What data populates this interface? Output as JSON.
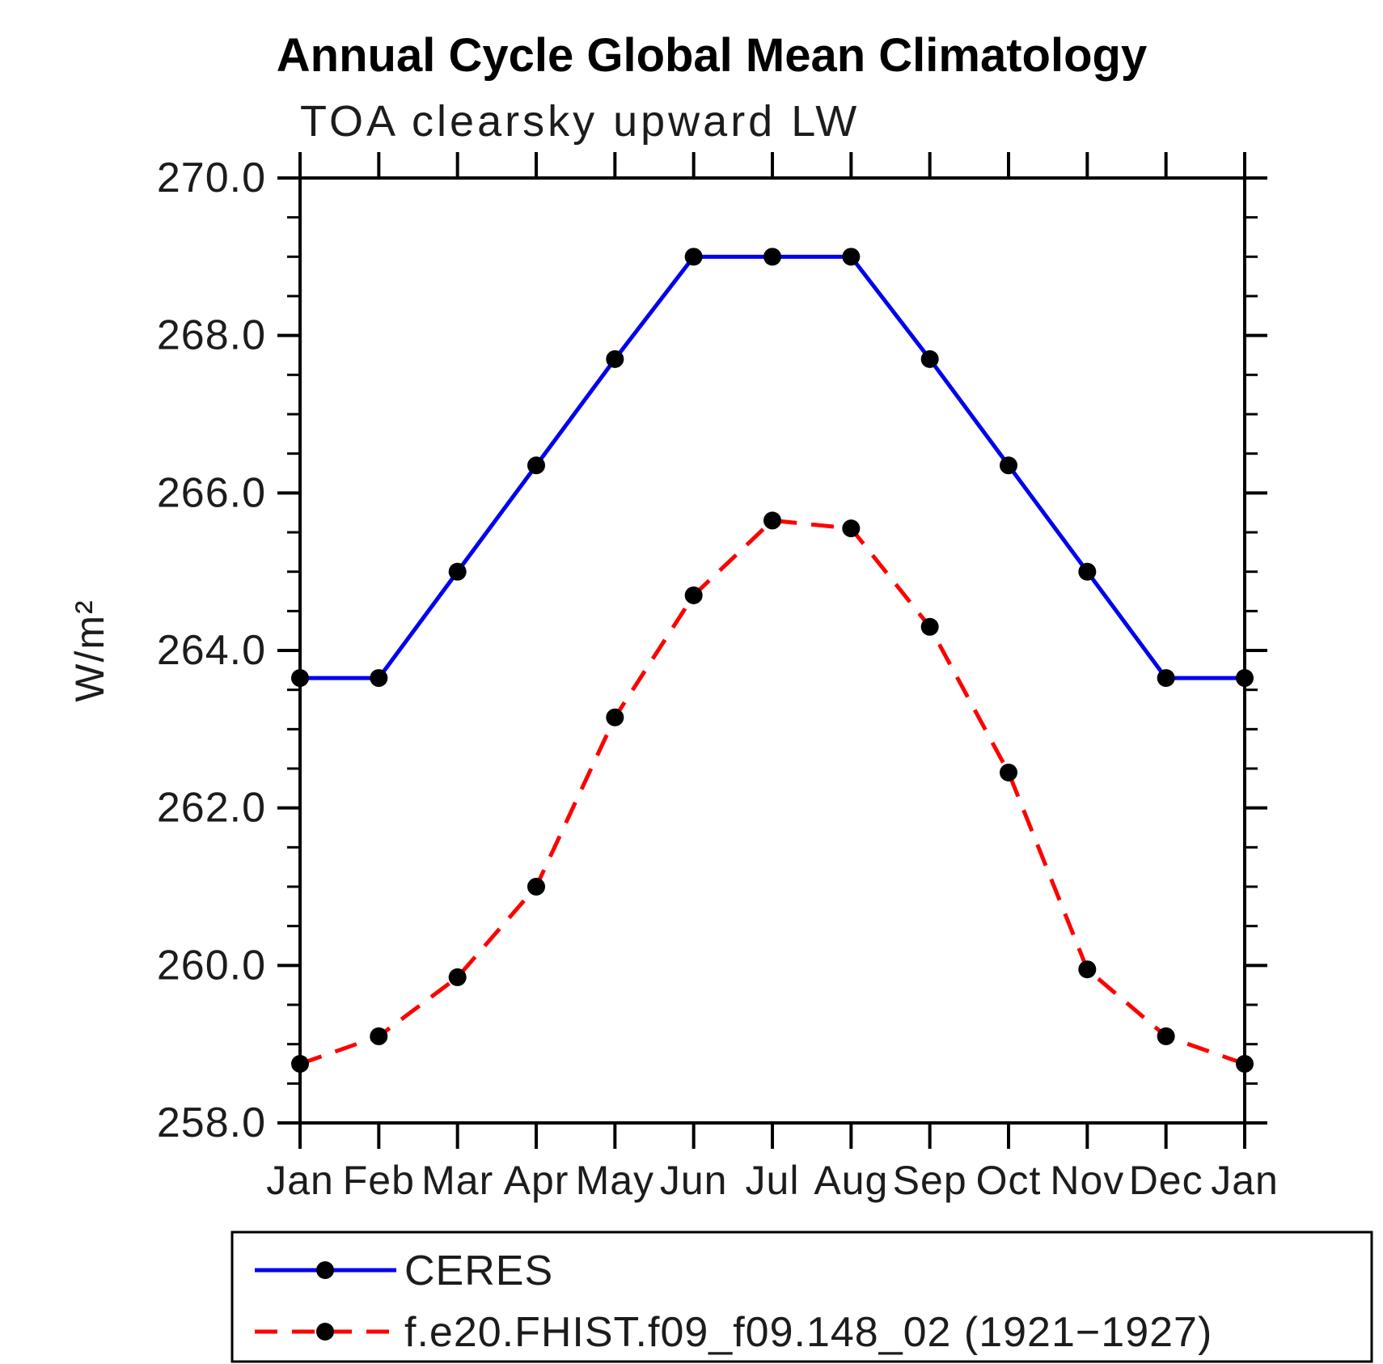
{
  "page": {
    "background_color": "#ffffff",
    "axis_color": "#000000",
    "marker_color": "#000000"
  },
  "chart_data": {
    "type": "line",
    "title": "Annual Cycle Global Mean Climatology",
    "subtitle": "TOA clearsky upward LW",
    "ylabel": "W/m²",
    "xlabel": "",
    "categories": [
      "Jan",
      "Feb",
      "Mar",
      "Apr",
      "May",
      "Jun",
      "Jul",
      "Aug",
      "Sep",
      "Oct",
      "Nov",
      "Dec",
      "Jan"
    ],
    "ylim": [
      258.0,
      270.0
    ],
    "ytick_major_interval": 2.0,
    "ytick_minor_interval": 0.5,
    "ytick_labels": [
      "258.0",
      "260.0",
      "262.0",
      "264.0",
      "266.0",
      "268.0",
      "270.0"
    ],
    "grid": false,
    "legend_position": "bottom",
    "series": [
      {
        "name": "CERES",
        "color": "#0000ee",
        "line_style": "solid",
        "marker": "circle",
        "marker_color": "#000000",
        "values": [
          263.65,
          263.65,
          265.0,
          266.35,
          267.7,
          269.0,
          269.0,
          269.0,
          267.7,
          266.35,
          265.0,
          263.65,
          263.65
        ]
      },
      {
        "name": "f.e20.FHIST.f09_f09.148_02 (1921−1927)",
        "color": "#ff0000",
        "line_style": "dashed",
        "marker": "circle",
        "marker_color": "#000000",
        "values": [
          258.75,
          259.1,
          259.85,
          261.0,
          263.15,
          264.7,
          265.65,
          265.55,
          264.3,
          262.45,
          259.95,
          259.1,
          258.75
        ]
      }
    ]
  }
}
